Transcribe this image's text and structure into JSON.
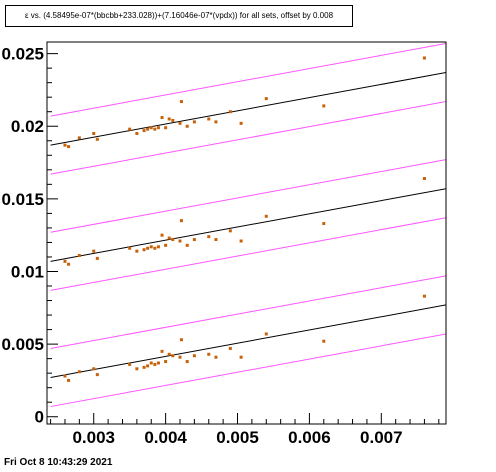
{
  "title": "ε vs. (4.58495e-07*(bbcbb+233.028))+(7.16046e-07*(vpdx)) for all sets, offset by 0.008",
  "footer": "Fri Oct  8 10:43:29 2021",
  "colors": {
    "points": "#c8620a",
    "fit": "#000000",
    "band": "#ff55ff"
  },
  "chart_data": {
    "type": "scatter",
    "xlim": [
      0.00235,
      0.0079
    ],
    "ylim": [
      -0.0005,
      0.0258
    ],
    "x_ticks": [
      0.003,
      0.004,
      0.005,
      0.006,
      0.007
    ],
    "x_tick_labels": [
      "0.003",
      "0.004",
      "0.005",
      "0.006",
      "0.007"
    ],
    "y_ticks": [
      0,
      0.005,
      0.01,
      0.015,
      0.02,
      0.025
    ],
    "y_tick_labels": [
      "0",
      "0.005",
      "0.01",
      "0.015",
      "0.02",
      "0.025"
    ],
    "series": [
      {
        "points": [
          [
            0.0026,
            0.0028
          ],
          [
            0.00265,
            0.0025
          ],
          [
            0.0028,
            0.0031
          ],
          [
            0.003,
            0.0033
          ],
          [
            0.00305,
            0.0029
          ],
          [
            0.0035,
            0.0036
          ],
          [
            0.0036,
            0.0033
          ],
          [
            0.0037,
            0.0034
          ],
          [
            0.00375,
            0.0035
          ],
          [
            0.0038,
            0.0037
          ],
          [
            0.00385,
            0.0036
          ],
          [
            0.0039,
            0.0037
          ],
          [
            0.00395,
            0.0045
          ],
          [
            0.004,
            0.0038
          ],
          [
            0.00405,
            0.0043
          ],
          [
            0.0041,
            0.0042
          ],
          [
            0.0042,
            0.0041
          ],
          [
            0.00422,
            0.0053
          ],
          [
            0.0043,
            0.0038
          ],
          [
            0.0044,
            0.0042
          ],
          [
            0.0046,
            0.0043
          ],
          [
            0.0047,
            0.0041
          ],
          [
            0.0049,
            0.0047
          ],
          [
            0.00505,
            0.0041
          ],
          [
            0.0054,
            0.0057
          ],
          [
            0.0062,
            0.0052
          ],
          [
            0.0076,
            0.0083
          ]
        ],
        "fit": [
          [
            0.0024,
            0.0027
          ],
          [
            0.0079,
            0.0077
          ]
        ],
        "band_upper": [
          [
            0.0024,
            0.0047
          ],
          [
            0.0079,
            0.0097
          ]
        ],
        "band_lower": [
          [
            0.0024,
            0.0007
          ],
          [
            0.0079,
            0.0057
          ]
        ]
      },
      {
        "points": [
          [
            0.0026,
            0.0107
          ],
          [
            0.00265,
            0.0105
          ],
          [
            0.0028,
            0.0111
          ],
          [
            0.003,
            0.0114
          ],
          [
            0.00305,
            0.0109
          ],
          [
            0.0035,
            0.0116
          ],
          [
            0.0036,
            0.0114
          ],
          [
            0.0037,
            0.0115
          ],
          [
            0.00375,
            0.0116
          ],
          [
            0.0038,
            0.0117
          ],
          [
            0.00385,
            0.0116
          ],
          [
            0.0039,
            0.0117
          ],
          [
            0.00395,
            0.0125
          ],
          [
            0.004,
            0.0118
          ],
          [
            0.00405,
            0.0123
          ],
          [
            0.0041,
            0.0122
          ],
          [
            0.0042,
            0.0121
          ],
          [
            0.00422,
            0.0135
          ],
          [
            0.0043,
            0.0118
          ],
          [
            0.0044,
            0.0122
          ],
          [
            0.0046,
            0.0124
          ],
          [
            0.0047,
            0.0122
          ],
          [
            0.0049,
            0.0128
          ],
          [
            0.00505,
            0.0121
          ],
          [
            0.0054,
            0.0138
          ],
          [
            0.0062,
            0.0133
          ],
          [
            0.0076,
            0.0164
          ]
        ],
        "fit": [
          [
            0.0024,
            0.0107
          ],
          [
            0.0079,
            0.0157
          ]
        ],
        "band_upper": [
          [
            0.0024,
            0.0127
          ],
          [
            0.0079,
            0.0177
          ]
        ],
        "band_lower": [
          [
            0.0024,
            0.0087
          ],
          [
            0.0079,
            0.0137
          ]
        ]
      },
      {
        "points": [
          [
            0.0026,
            0.0187
          ],
          [
            0.00265,
            0.0186
          ],
          [
            0.0028,
            0.0192
          ],
          [
            0.003,
            0.0195
          ],
          [
            0.00305,
            0.0191
          ],
          [
            0.0035,
            0.0198
          ],
          [
            0.0036,
            0.0195
          ],
          [
            0.0037,
            0.0197
          ],
          [
            0.00375,
            0.0198
          ],
          [
            0.0038,
            0.0199
          ],
          [
            0.00385,
            0.0198
          ],
          [
            0.0039,
            0.0199
          ],
          [
            0.00395,
            0.0206
          ],
          [
            0.004,
            0.0199
          ],
          [
            0.00405,
            0.0205
          ],
          [
            0.0041,
            0.0204
          ],
          [
            0.0042,
            0.0202
          ],
          [
            0.00422,
            0.0217
          ],
          [
            0.0043,
            0.02
          ],
          [
            0.0044,
            0.0203
          ],
          [
            0.0046,
            0.0205
          ],
          [
            0.0047,
            0.0203
          ],
          [
            0.0049,
            0.021
          ],
          [
            0.00505,
            0.0202
          ],
          [
            0.0054,
            0.0219
          ],
          [
            0.0062,
            0.0214
          ],
          [
            0.0076,
            0.0247
          ]
        ],
        "fit": [
          [
            0.0024,
            0.0187
          ],
          [
            0.0079,
            0.0237
          ]
        ],
        "band_upper": [
          [
            0.0024,
            0.0207
          ],
          [
            0.0079,
            0.0257
          ]
        ],
        "band_lower": [
          [
            0.0024,
            0.0167
          ],
          [
            0.0079,
            0.0217
          ]
        ]
      }
    ]
  }
}
